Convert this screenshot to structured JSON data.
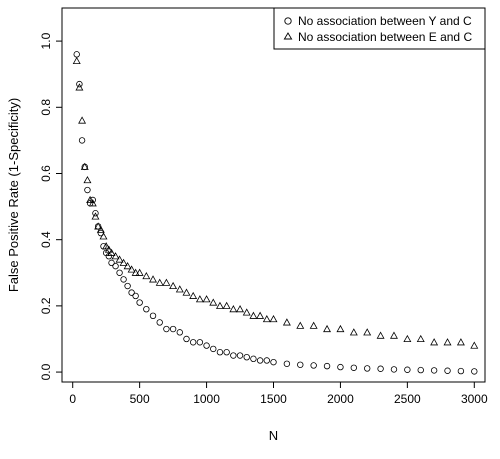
{
  "chart_data": {
    "type": "scatter",
    "title": "",
    "xlabel": "N",
    "ylabel": "False Positive Rate (1-Specificity)",
    "xlim": [
      -80,
      3080
    ],
    "ylim": [
      -0.03,
      1.1
    ],
    "xticks": [
      0,
      500,
      1000,
      1500,
      2000,
      2500,
      3000
    ],
    "yticks": [
      0.0,
      0.2,
      0.4,
      0.6,
      0.8,
      1.0
    ],
    "ytick_labels": [
      "0.0",
      "0.2",
      "0.4",
      "0.6",
      "0.8",
      "1.0"
    ],
    "grid": false,
    "legend_position": "top-right",
    "series": [
      {
        "name": "No association between Y  and C",
        "marker": "circle",
        "x": [
          30,
          50,
          70,
          90,
          110,
          130,
          150,
          170,
          190,
          210,
          230,
          250,
          270,
          290,
          320,
          350,
          380,
          410,
          440,
          470,
          500,
          550,
          600,
          650,
          700,
          750,
          800,
          850,
          900,
          950,
          1000,
          1050,
          1100,
          1150,
          1200,
          1250,
          1300,
          1350,
          1400,
          1450,
          1500,
          1600,
          1700,
          1800,
          1900,
          2000,
          2100,
          2200,
          2300,
          2400,
          2500,
          2600,
          2700,
          2800,
          2900,
          3000
        ],
        "y": [
          0.96,
          0.87,
          0.7,
          0.62,
          0.55,
          0.51,
          0.52,
          0.48,
          0.44,
          0.42,
          0.38,
          0.36,
          0.35,
          0.33,
          0.32,
          0.3,
          0.28,
          0.26,
          0.24,
          0.23,
          0.21,
          0.19,
          0.17,
          0.15,
          0.13,
          0.13,
          0.12,
          0.1,
          0.09,
          0.09,
          0.08,
          0.07,
          0.06,
          0.06,
          0.05,
          0.05,
          0.045,
          0.04,
          0.035,
          0.035,
          0.03,
          0.025,
          0.022,
          0.02,
          0.018,
          0.015,
          0.013,
          0.011,
          0.01,
          0.008,
          0.007,
          0.006,
          0.005,
          0.004,
          0.003,
          0.002
        ]
      },
      {
        "name": "No association between E  and C",
        "marker": "triangle",
        "x": [
          30,
          50,
          70,
          90,
          110,
          130,
          150,
          170,
          190,
          210,
          230,
          250,
          270,
          290,
          320,
          350,
          380,
          410,
          440,
          470,
          500,
          550,
          600,
          650,
          700,
          750,
          800,
          850,
          900,
          950,
          1000,
          1050,
          1100,
          1150,
          1200,
          1250,
          1300,
          1350,
          1400,
          1450,
          1500,
          1600,
          1700,
          1800,
          1900,
          2000,
          2100,
          2200,
          2300,
          2400,
          2500,
          2600,
          2700,
          2800,
          2900,
          3000
        ],
        "y": [
          0.94,
          0.86,
          0.76,
          0.62,
          0.58,
          0.52,
          0.51,
          0.47,
          0.44,
          0.43,
          0.41,
          0.38,
          0.37,
          0.36,
          0.35,
          0.34,
          0.33,
          0.32,
          0.31,
          0.3,
          0.3,
          0.29,
          0.28,
          0.27,
          0.27,
          0.26,
          0.25,
          0.24,
          0.23,
          0.22,
          0.22,
          0.21,
          0.2,
          0.2,
          0.19,
          0.19,
          0.18,
          0.17,
          0.17,
          0.16,
          0.16,
          0.15,
          0.14,
          0.14,
          0.13,
          0.13,
          0.12,
          0.12,
          0.11,
          0.11,
          0.1,
          0.1,
          0.09,
          0.09,
          0.09,
          0.08
        ]
      }
    ]
  }
}
